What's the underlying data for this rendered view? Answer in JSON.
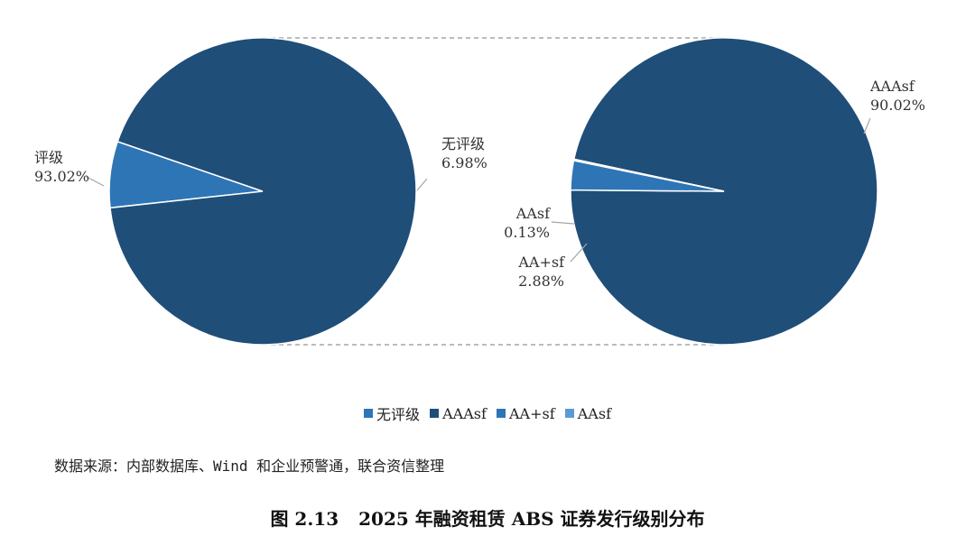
{
  "chart_data": [
    {
      "type": "pie",
      "slices": [
        {
          "label_lines": [
            "无评级",
            "6.98%"
          ],
          "value": 6.98,
          "color": "#2e75b6"
        },
        {
          "label_lines": [
            "评级",
            "93.02%"
          ],
          "value": 93.02,
          "color": "#1f4e79"
        }
      ]
    },
    {
      "type": "pie",
      "slices": [
        {
          "label_lines": [
            "AAAsf",
            "90.02%"
          ],
          "value": 90.02,
          "color": "#1f4e79"
        },
        {
          "label_lines": [
            "AA+sf",
            "2.88%"
          ],
          "value": 2.88,
          "color": "#2e75b6"
        },
        {
          "label_lines": [
            "AAsf",
            "0.13%"
          ],
          "value": 0.13,
          "color": "#5b9bd5"
        }
      ]
    }
  ],
  "legend": [
    {
      "label": "无评级",
      "color": "#2e75b6"
    },
    {
      "label": "AAAsf",
      "color": "#1f4e79"
    },
    {
      "label": "AA+sf",
      "color": "#2e75b6"
    },
    {
      "label": "AAsf",
      "color": "#5b9bd5"
    }
  ],
  "source_note": "数据来源：内部数据库、Wind 和企业预警通，联合资信整理",
  "figure": {
    "number": "图 2.13",
    "title": "2025 年融资租赁 ABS 证券发行级别分布"
  }
}
